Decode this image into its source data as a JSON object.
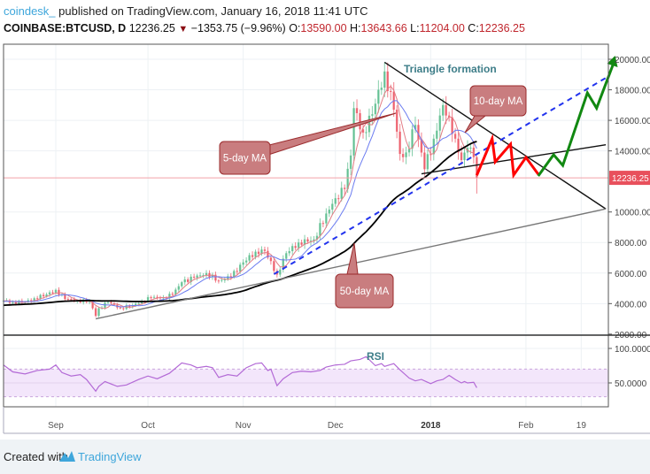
{
  "header": {
    "user": "coindesk_",
    "published": "published on TradingView.com, January 16, 2018 11:41 UTC",
    "symbol": "COINBASE:BTCUSD, D",
    "last": "12236.25",
    "change": "−1353.75 (−9.96%)",
    "o_label": "O:",
    "o": "13590.00",
    "h_label": "H:",
    "h": "13643.66",
    "l_label": "L:",
    "l": "11204.00",
    "c_label": "C:",
    "c": "12236.25"
  },
  "footer": {
    "created_with": "Created with",
    "brand": "TradingView"
  },
  "colors": {
    "up": "#53b987",
    "down": "#eb4d5c",
    "ma5": "#e27c85",
    "ma10": "#6b7cf0",
    "ma50": "#000000",
    "rsi": "#b36ad6",
    "callout_fill": "#c97d7f",
    "callout_border": "#9b2c2e",
    "projection_down": "#ff0000",
    "projection_up": "#118811",
    "dashed_trend": "#2233ee"
  },
  "chart_data": [
    {
      "type": "candlestick",
      "panel": "price",
      "ylim": [
        2000,
        20000
      ],
      "y_ticks": [
        "20000.00",
        "18000.00",
        "16000.00",
        "14000.00",
        "10000.00",
        "8000.00",
        "6000.00",
        "4000.00",
        "2000.00"
      ],
      "x_ticks": [
        {
          "label": "Sep",
          "date": "2017-09-01"
        },
        {
          "label": "Oct",
          "date": "2017-10-01"
        },
        {
          "label": "Nov",
          "date": "2017-11-01"
        },
        {
          "label": "Dec",
          "date": "2017-12-01"
        },
        {
          "label": "2018",
          "date": "2018-01-01"
        },
        {
          "label": "Feb",
          "date": "2018-02-01"
        },
        {
          "label": "19",
          "date": "2018-02-19"
        }
      ],
      "x_range": [
        "2017-08-15",
        "2018-03-03"
      ],
      "grid": true,
      "last_price_label": "12236.25",
      "closes": [
        [
          "2017-08-15",
          4200
        ],
        [
          "2017-08-18",
          4100
        ],
        [
          "2017-08-22",
          4100
        ],
        [
          "2017-08-25",
          4350
        ],
        [
          "2017-08-29",
          4600
        ],
        [
          "2017-09-01",
          4900
        ],
        [
          "2017-09-04",
          4300
        ],
        [
          "2017-09-08",
          4200
        ],
        [
          "2017-09-12",
          4150
        ],
        [
          "2017-09-14",
          3200
        ],
        [
          "2017-09-15",
          3700
        ],
        [
          "2017-09-18",
          4100
        ],
        [
          "2017-09-22",
          3700
        ],
        [
          "2017-09-26",
          3900
        ],
        [
          "2017-09-29",
          4150
        ],
        [
          "2017-10-02",
          4400
        ],
        [
          "2017-10-06",
          4400
        ],
        [
          "2017-10-09",
          4600
        ],
        [
          "2017-10-12",
          5400
        ],
        [
          "2017-10-16",
          5700
        ],
        [
          "2017-10-20",
          6000
        ],
        [
          "2017-10-24",
          5500
        ],
        [
          "2017-10-28",
          5750
        ],
        [
          "2017-11-01",
          6700
        ],
        [
          "2017-11-05",
          7400
        ],
        [
          "2017-11-08",
          7450
        ],
        [
          "2017-11-12",
          5900
        ],
        [
          "2017-11-15",
          7300
        ],
        [
          "2017-11-19",
          8000
        ],
        [
          "2017-11-24",
          8200
        ],
        [
          "2017-11-28",
          9900
        ],
        [
          "2017-12-01",
          10900
        ],
        [
          "2017-12-04",
          11500
        ],
        [
          "2017-12-06",
          13700
        ],
        [
          "2017-12-07",
          16800
        ],
        [
          "2017-12-10",
          15200
        ],
        [
          "2017-12-13",
          16400
        ],
        [
          "2017-12-17",
          19200
        ],
        [
          "2017-12-20",
          16700
        ],
        [
          "2017-12-22",
          13800
        ],
        [
          "2017-12-24",
          13900
        ],
        [
          "2017-12-27",
          15700
        ],
        [
          "2017-12-30",
          12800
        ],
        [
          "2018-01-02",
          14800
        ],
        [
          "2018-01-05",
          17000
        ],
        [
          "2018-01-07",
          16200
        ],
        [
          "2018-01-09",
          14800
        ],
        [
          "2018-01-11",
          13400
        ],
        [
          "2018-01-13",
          14200
        ],
        [
          "2018-01-15",
          13590
        ],
        [
          "2018-01-16",
          12236.25
        ]
      ],
      "last_candle": {
        "date": "2018-01-16",
        "open": 13590.0,
        "high": 13643.66,
        "low": 11204.0,
        "close": 12236.25
      },
      "moving_averages": [
        5,
        10,
        50
      ],
      "annotations": {
        "triangle_label": "Triangle formation",
        "callouts": [
          {
            "text": "5-day MA"
          },
          {
            "text": "10-day MA"
          },
          {
            "text": "50-day MA"
          }
        ],
        "lines": [
          {
            "name": "triangle-upper",
            "from": [
              "2017-12-17",
              19800
            ],
            "to": [
              "2018-02-27",
              10200
            ]
          },
          {
            "name": "long-support",
            "from": [
              "2017-09-14",
              3000
            ],
            "to": [
              "2018-02-27",
              10200
            ]
          },
          {
            "name": "triangle-lower",
            "from": [
              "2017-12-29",
              12500
            ],
            "to": [
              "2018-02-27",
              14400
            ]
          },
          {
            "name": "dashed-trend",
            "from": [
              "2017-11-11",
              5930
            ],
            "to": [
              "2018-02-28",
              18900
            ]
          }
        ],
        "projection_down": [
          [
            "2018-01-16",
            12400
          ],
          [
            "2018-01-21",
            14800
          ],
          [
            "2018-01-22",
            13280
          ],
          [
            "2018-01-27",
            14440
          ],
          [
            "2018-01-28",
            12415
          ],
          [
            "2018-02-01",
            13570
          ],
          [
            "2018-02-05",
            12470
          ]
        ],
        "projection_up": [
          [
            "2018-02-05",
            12360
          ],
          [
            "2018-02-10",
            13750
          ],
          [
            "2018-02-13",
            13050
          ],
          [
            "2018-02-21",
            17800
          ],
          [
            "2018-02-24",
            16800
          ],
          [
            "2018-03-02",
            20000
          ]
        ]
      }
    },
    {
      "type": "line",
      "panel": "rsi",
      "title": "RSI",
      "ylim": [
        0,
        110
      ],
      "y_ticks": [
        "100.0000",
        "50.0000"
      ],
      "band": [
        30,
        70
      ],
      "values": [
        [
          "2017-08-15",
          76
        ],
        [
          "2017-08-18",
          66
        ],
        [
          "2017-08-22",
          63
        ],
        [
          "2017-08-26",
          68
        ],
        [
          "2017-08-30",
          70
        ],
        [
          "2017-09-01",
          76
        ],
        [
          "2017-09-03",
          65
        ],
        [
          "2017-09-06",
          60
        ],
        [
          "2017-09-09",
          62
        ],
        [
          "2017-09-11",
          55
        ],
        [
          "2017-09-14",
          38
        ],
        [
          "2017-09-15",
          45
        ],
        [
          "2017-09-17",
          52
        ],
        [
          "2017-09-21",
          45
        ],
        [
          "2017-09-24",
          47
        ],
        [
          "2017-09-28",
          55
        ],
        [
          "2017-10-01",
          60
        ],
        [
          "2017-10-04",
          56
        ],
        [
          "2017-10-08",
          64
        ],
        [
          "2017-10-12",
          79
        ],
        [
          "2017-10-15",
          76
        ],
        [
          "2017-10-17",
          72
        ],
        [
          "2017-10-20",
          74
        ],
        [
          "2017-10-22",
          72
        ],
        [
          "2017-10-24",
          58
        ],
        [
          "2017-10-27",
          62
        ],
        [
          "2017-10-30",
          60
        ],
        [
          "2017-11-02",
          72
        ],
        [
          "2017-11-05",
          78
        ],
        [
          "2017-11-07",
          79
        ],
        [
          "2017-11-09",
          68
        ],
        [
          "2017-11-10",
          70
        ],
        [
          "2017-11-12",
          46
        ],
        [
          "2017-11-14",
          56
        ],
        [
          "2017-11-17",
          65
        ],
        [
          "2017-11-20",
          67
        ],
        [
          "2017-11-23",
          66
        ],
        [
          "2017-11-26",
          68
        ],
        [
          "2017-11-28",
          73
        ],
        [
          "2017-12-01",
          76
        ],
        [
          "2017-12-04",
          77
        ],
        [
          "2017-12-06",
          82
        ],
        [
          "2017-12-09",
          84
        ],
        [
          "2017-12-11",
          88
        ],
        [
          "2017-12-14",
          75
        ],
        [
          "2017-12-16",
          78
        ],
        [
          "2017-12-17",
          74
        ],
        [
          "2017-12-20",
          78
        ],
        [
          "2017-12-22",
          69
        ],
        [
          "2017-12-25",
          57
        ],
        [
          "2017-12-27",
          53
        ],
        [
          "2017-12-29",
          55
        ],
        [
          "2018-01-01",
          49
        ],
        [
          "2018-01-03",
          53
        ],
        [
          "2018-01-05",
          55
        ],
        [
          "2018-01-07",
          61
        ],
        [
          "2018-01-09",
          55
        ],
        [
          "2018-01-11",
          50
        ],
        [
          "2018-01-12",
          52
        ],
        [
          "2018-01-13",
          50
        ],
        [
          "2018-01-15",
          51
        ],
        [
          "2018-01-16",
          43
        ]
      ]
    }
  ]
}
